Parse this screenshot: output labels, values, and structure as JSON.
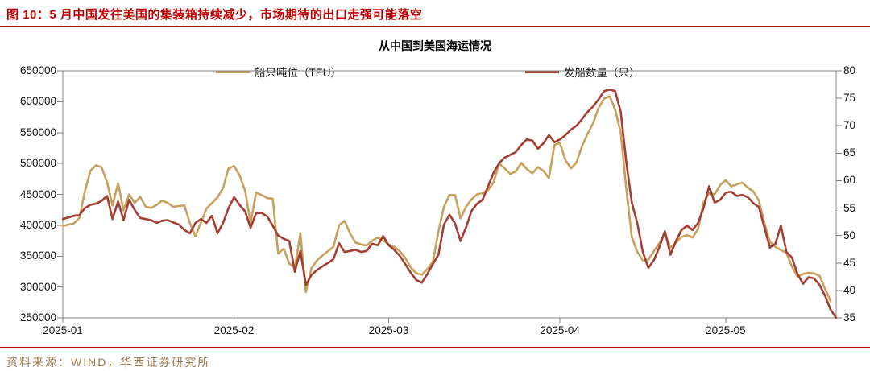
{
  "page": {
    "title": "图 10：5 月中国发往美国的集装箱持续减少，市场期待的出口走强可能落空",
    "source": "资料来源：WIND，华西证券研究所"
  },
  "colors": {
    "title_red": "#c00000",
    "rule_red": "#c00000",
    "gold_line": "#c7a15c",
    "dark_red_line": "#a43e32",
    "source_text": "#9c7a4b",
    "axis_gray": "#808080"
  },
  "chart_data": {
    "type": "line",
    "title": "从中国到美国海运情况",
    "legend_position": "top",
    "grid": false,
    "legend": [
      {
        "name": "船只吨位（TEU）",
        "color": "#c7a15c",
        "axis": "left"
      },
      {
        "name": "发船数量（只）",
        "color": "#a43e32",
        "axis": "right"
      }
    ],
    "x_axis": {
      "unit": "days since 2025-01-01",
      "range": [
        0,
        140
      ],
      "tick_days": [
        0,
        31,
        59,
        90,
        120
      ],
      "tick_labels": [
        "2025-01",
        "2025-02",
        "2025-03",
        "2025-04",
        "2025-05"
      ]
    },
    "y_left": {
      "label": "船只吨位（TEU）",
      "range": [
        250000,
        650000
      ],
      "tick_step": 50000,
      "ticks": [
        650000,
        600000,
        550000,
        500000,
        450000,
        400000,
        350000,
        300000,
        250000
      ]
    },
    "y_right": {
      "label": "发船数量（只）",
      "range": [
        35,
        80
      ],
      "tick_step": 5,
      "ticks": [
        80,
        75,
        70,
        65,
        60,
        55,
        50,
        45,
        40,
        35
      ]
    },
    "series": [
      {
        "name": "船只吨位（TEU）",
        "axis": "left",
        "color": "#c7a15c",
        "start_day": 0,
        "values": [
          399000,
          401000,
          403000,
          412000,
          455000,
          488000,
          497000,
          494000,
          470000,
          432000,
          468000,
          424000,
          450000,
          436000,
          446000,
          430000,
          428000,
          433000,
          440000,
          436000,
          430000,
          431000,
          432000,
          404000,
          382000,
          404000,
          427000,
          436000,
          445000,
          460000,
          492000,
          496000,
          481000,
          456000,
          404000,
          453000,
          449000,
          444000,
          443000,
          354000,
          362000,
          338000,
          331000,
          387000,
          292000,
          330000,
          343000,
          351000,
          358000,
          365000,
          400000,
          407000,
          387000,
          372000,
          369000,
          367000,
          375000,
          380000,
          375000,
          369000,
          365000,
          358000,
          347000,
          332000,
          322000,
          320000,
          329000,
          341000,
          390000,
          430000,
          449000,
          449000,
          411000,
          430000,
          442000,
          450000,
          452000,
          457000,
          470000,
          500000,
          492000,
          483000,
          487000,
          501000,
          491000,
          484000,
          494000,
          488000,
          476000,
          530000,
          533000,
          505000,
          492000,
          502000,
          528000,
          548000,
          565000,
          590000,
          605000,
          609000,
          587000,
          550000,
          460000,
          381000,
          357000,
          343000,
          344000,
          358000,
          371000,
          387000,
          364000,
          372000,
          381000,
          384000,
          380000,
          394000,
          437000,
          452000,
          450000,
          465000,
          473000,
          463000,
          466000,
          469000,
          461000,
          455000,
          440000,
          404000,
          373000,
          365000,
          360000,
          355000,
          333000,
          317000,
          321000,
          323000,
          322000,
          318000,
          297000,
          277000
        ]
      },
      {
        "name": "发船数量（只）",
        "axis": "right",
        "color": "#a43e32",
        "start_day": 0,
        "values": [
          53,
          53.3,
          53.6,
          53.7,
          55,
          55.6,
          55.8,
          56.3,
          57.2,
          53,
          56.2,
          52.8,
          56.5,
          54.7,
          53.2,
          53,
          52.8,
          52.3,
          52.7,
          52.8,
          52.4,
          52,
          51,
          50.4,
          52.3,
          53,
          52.3,
          53.6,
          50.4,
          52.3,
          55,
          57,
          55.6,
          54.4,
          51.4,
          54.1,
          54.1,
          53.5,
          51.8,
          50,
          49.4,
          49,
          43.4,
          47.2,
          41,
          42.8,
          43.7,
          44.4,
          45,
          45.7,
          48.6,
          47,
          47.2,
          47.4,
          47,
          47.2,
          48.5,
          48.2,
          49.9,
          48.2,
          47.4,
          46.3,
          44.8,
          43.2,
          41.9,
          41.4,
          43,
          44.8,
          46.5,
          52,
          53.8,
          52.2,
          49,
          51.5,
          54.5,
          55.8,
          56.5,
          59,
          61.5,
          63.2,
          64.2,
          64.7,
          65.2,
          66.5,
          67.5,
          67.3,
          65.8,
          66.8,
          68.3,
          67,
          67.5,
          68.3,
          69.3,
          70,
          71.2,
          72.5,
          73.5,
          74.8,
          76.3,
          76.6,
          76.3,
          72.5,
          63.5,
          56,
          52.3,
          47,
          44.1,
          45.5,
          47.9,
          50.8,
          46.5,
          49,
          51,
          51.8,
          51,
          52.3,
          55,
          59,
          56,
          56.5,
          57.8,
          58,
          57.2,
          57.4,
          57,
          55.9,
          55.2,
          51.5,
          47.8,
          48.5,
          51.8,
          47,
          46,
          43,
          41.2,
          42.4,
          42.2,
          41,
          39,
          36.5,
          35
        ]
      }
    ]
  }
}
